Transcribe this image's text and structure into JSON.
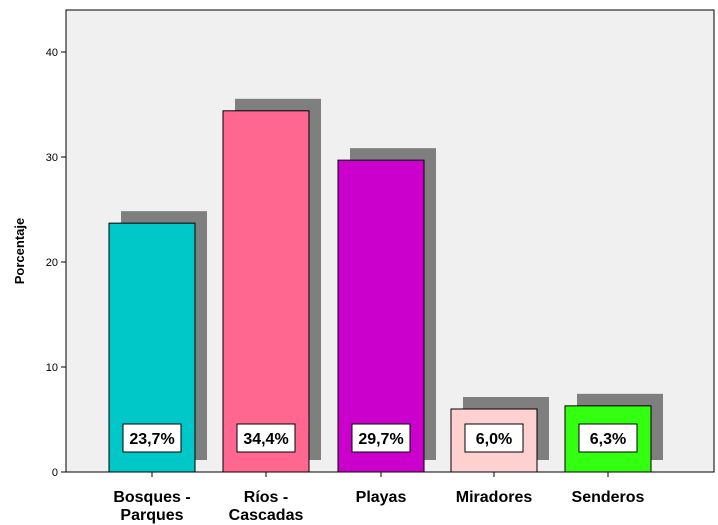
{
  "chart_data": {
    "type": "bar",
    "title": "",
    "xlabel": "",
    "ylabel": "Porcentaje",
    "ylim": [
      0,
      44
    ],
    "yticks": [
      0,
      10,
      20,
      30,
      40
    ],
    "grid": false,
    "plot_background": "#f0f0f0",
    "shadow_color": "#7f7f7f",
    "categories": [
      [
        "Bosques -",
        "Parques"
      ],
      [
        "Ríos -",
        "Cascadas"
      ],
      [
        "Playas"
      ],
      [
        "Miradores"
      ],
      [
        "Senderos"
      ]
    ],
    "values": [
      23.7,
      34.4,
      29.7,
      6.0,
      6.3
    ],
    "data_labels": [
      "23,7%",
      "34,4%",
      "29,7%",
      "6,0%",
      "6,3%"
    ],
    "colors": [
      "#00c8c8",
      "#ff6690",
      "#cc00cc",
      "#ffd0d0",
      "#33ff11"
    ]
  }
}
